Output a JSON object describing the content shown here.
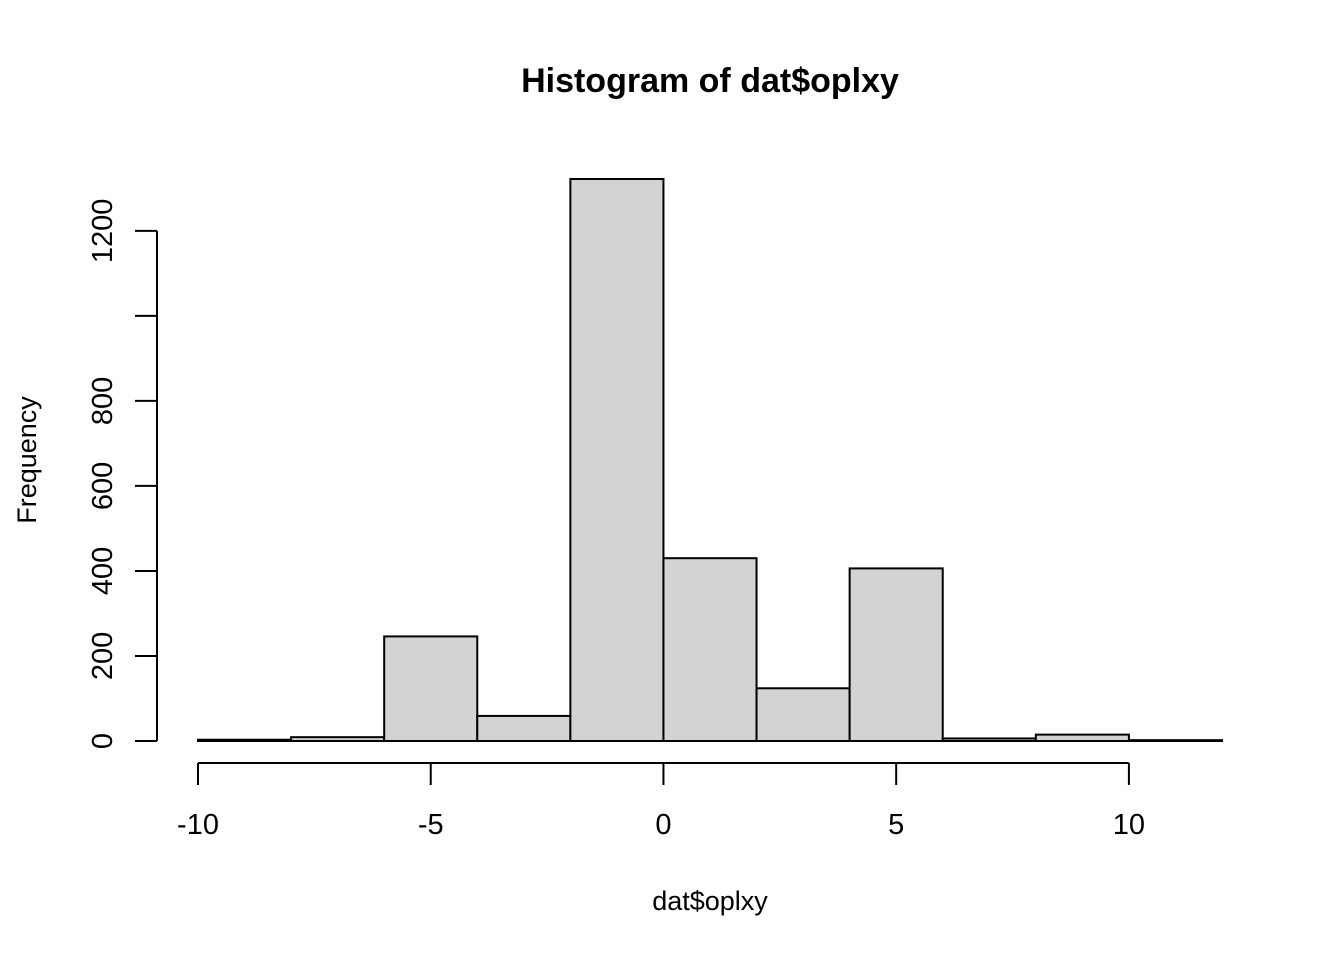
{
  "chart_data": {
    "type": "bar",
    "title": "Histogram of dat$oplxy",
    "xlabel": "dat$oplxy",
    "ylabel": "Frequency",
    "bins": [
      {
        "from": -10,
        "to": -8,
        "count": 3
      },
      {
        "from": -8,
        "to": -6,
        "count": 9
      },
      {
        "from": -6,
        "to": -4,
        "count": 246
      },
      {
        "from": -4,
        "to": -2,
        "count": 59
      },
      {
        "from": -2,
        "to": 0,
        "count": 1322
      },
      {
        "from": 0,
        "to": 2,
        "count": 430
      },
      {
        "from": 2,
        "to": 4,
        "count": 124
      },
      {
        "from": 4,
        "to": 6,
        "count": 406
      },
      {
        "from": 6,
        "to": 8,
        "count": 6
      },
      {
        "from": 8,
        "to": 10,
        "count": 15
      },
      {
        "from": 10,
        "to": 12,
        "count": 2
      }
    ],
    "xticks": [
      -10,
      -5,
      0,
      5,
      10
    ],
    "xtick_labels": [
      "-10",
      "-5",
      "0",
      "5",
      "10"
    ],
    "yticks": [
      0,
      200,
      400,
      600,
      800,
      1000,
      1200
    ],
    "ytick_labels": [
      "0",
      "200",
      "400",
      "600",
      "800",
      "",
      "1200"
    ],
    "xlim": [
      -10,
      12
    ],
    "ylim": [
      0,
      1322
    ],
    "bar_color": "#d3d3d3",
    "border_color": "#000000",
    "grid": false
  }
}
